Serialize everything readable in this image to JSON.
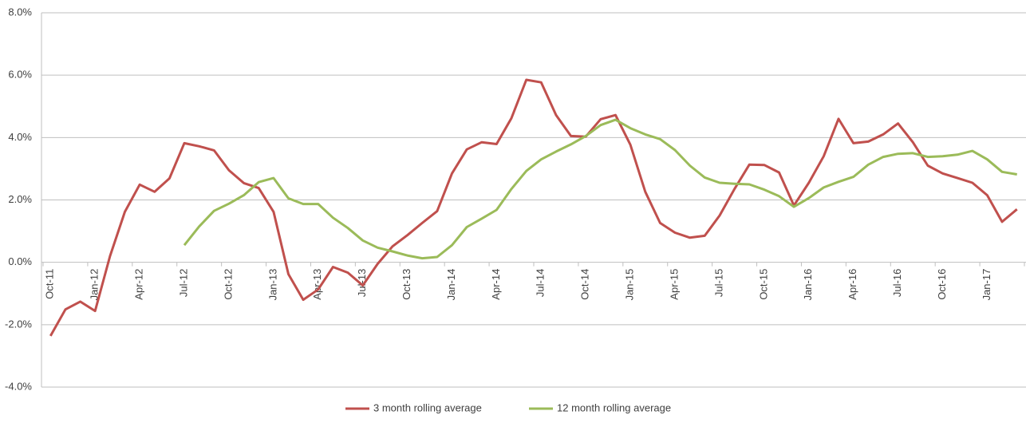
{
  "chart_data": {
    "type": "line",
    "categories": [
      "Oct-11",
      null,
      null,
      "Jan-12",
      null,
      null,
      "Apr-12",
      null,
      null,
      "Jul-12",
      null,
      null,
      "Oct-12",
      null,
      null,
      "Jan-13",
      null,
      null,
      "Apr-13",
      null,
      null,
      "Jul-13",
      null,
      null,
      "Oct-13",
      null,
      null,
      "Jan-14",
      null,
      null,
      "Apr-14",
      null,
      null,
      "Jul-14",
      null,
      null,
      "Oct-14",
      null,
      null,
      "Jan-15",
      null,
      null,
      "Apr-15",
      null,
      null,
      "Jul-15",
      null,
      null,
      "Oct-15",
      null,
      null,
      "Jan-16",
      null,
      null,
      "Apr-16",
      null,
      null,
      "Jul-16",
      null,
      null,
      "Oct-16",
      null,
      null,
      "Jan-17",
      null,
      null
    ],
    "series": [
      {
        "name": "3 month rolling average",
        "color": "#c0504d",
        "values": [
          -2.36,
          -1.51,
          -1.26,
          -1.56,
          0.2,
          1.62,
          2.49,
          2.26,
          2.69,
          3.82,
          3.72,
          3.59,
          2.95,
          2.54,
          2.38,
          1.62,
          -0.38,
          -1.2,
          -0.87,
          -0.15,
          -0.33,
          -0.74,
          -0.05,
          0.51,
          0.87,
          1.26,
          1.64,
          2.85,
          3.62,
          3.85,
          3.79,
          4.62,
          5.85,
          5.77,
          4.72,
          4.05,
          4.03,
          4.59,
          4.72,
          3.77,
          2.26,
          1.26,
          0.95,
          0.79,
          0.85,
          1.5,
          2.35,
          3.13,
          3.12,
          2.88,
          1.82,
          2.55,
          3.4,
          4.6,
          3.82,
          3.87,
          4.1,
          4.45,
          3.85,
          3.1,
          2.85,
          2.7,
          2.55,
          2.15,
          1.3,
          1.7
        ]
      },
      {
        "name": "12 month rolling average",
        "color": "#9bbb59",
        "values": [
          null,
          null,
          null,
          null,
          null,
          null,
          null,
          null,
          null,
          0.55,
          1.15,
          1.65,
          1.88,
          2.15,
          2.57,
          2.7,
          2.05,
          1.87,
          1.87,
          1.43,
          1.1,
          0.7,
          0.47,
          0.35,
          0.22,
          0.13,
          0.17,
          0.55,
          1.13,
          1.4,
          1.68,
          2.35,
          2.93,
          3.3,
          3.55,
          3.78,
          4.05,
          4.4,
          4.57,
          4.3,
          4.1,
          3.95,
          3.6,
          3.1,
          2.72,
          2.55,
          2.52,
          2.5,
          2.33,
          2.12,
          1.78,
          2.06,
          2.4,
          2.58,
          2.74,
          3.13,
          3.38,
          3.48,
          3.5,
          3.38,
          3.4,
          3.45,
          3.57,
          3.3,
          2.9,
          2.82
        ]
      }
    ],
    "ylim": [
      -4,
      8
    ],
    "yticks": [
      {
        "value": -4,
        "label": "-4.0%"
      },
      {
        "value": -2,
        "label": "-2.0%"
      },
      {
        "value": 0,
        "label": "0.0%"
      },
      {
        "value": 2,
        "label": "2.0%"
      },
      {
        "value": 4,
        "label": "4.0%"
      },
      {
        "value": 6,
        "label": "6.0%"
      },
      {
        "value": 8,
        "label": "8.0%"
      }
    ],
    "grid": true,
    "legend": "bottom"
  }
}
